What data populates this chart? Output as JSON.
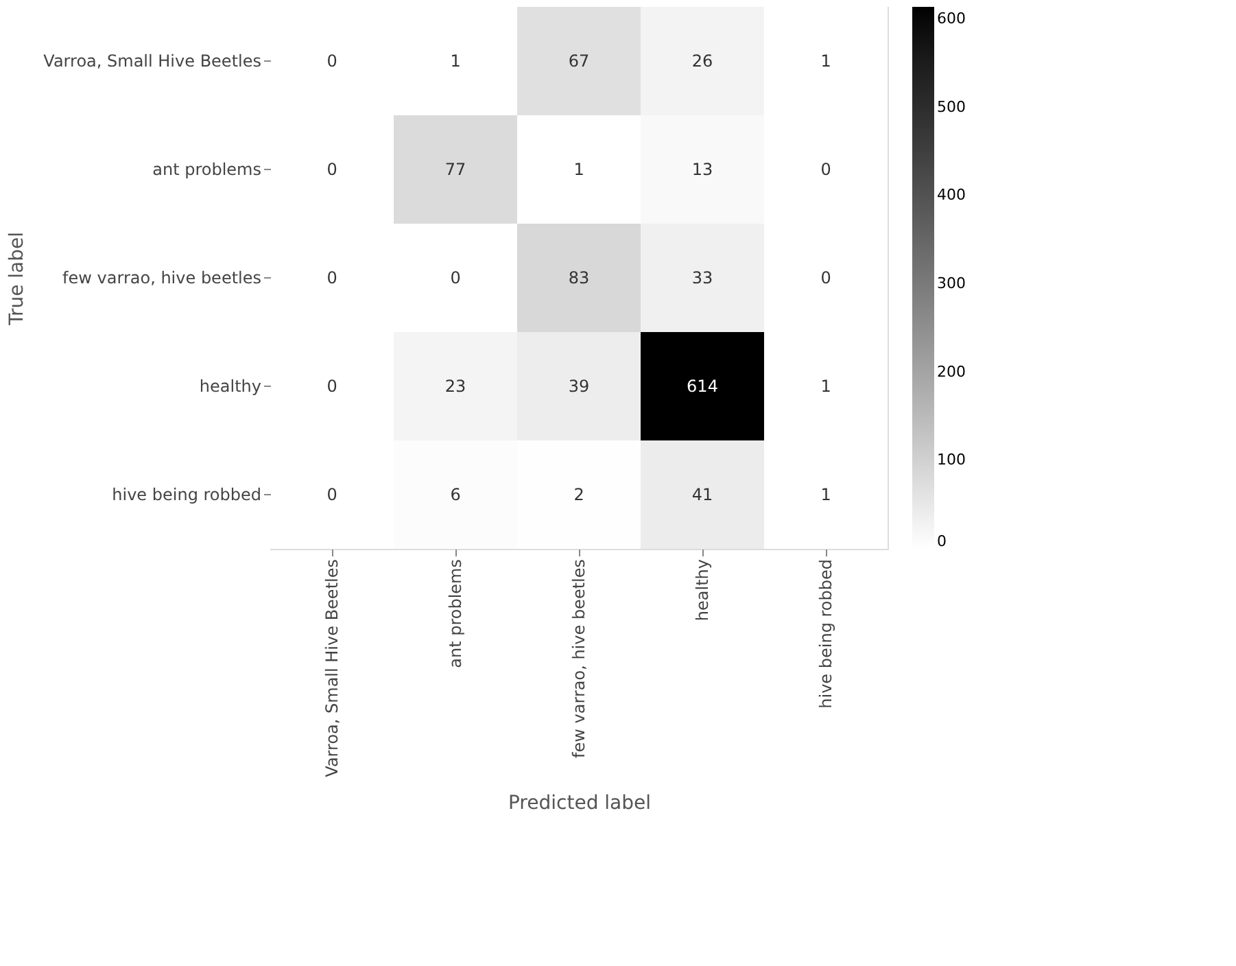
{
  "chart_data": {
    "type": "heatmap",
    "xlabel": "Predicted label",
    "ylabel": "True label",
    "categories": [
      "Varroa, Small Hive Beetles",
      "ant problems",
      "few varrao, hive beetles",
      "healthy",
      "hive being robbed"
    ],
    "y_categories": [
      "Varroa, Small Hive Beetles",
      "ant problems",
      "few varrao, hive beetles",
      "healthy",
      "hive being robbed"
    ],
    "cells": [
      [
        0,
        1,
        67,
        26,
        1
      ],
      [
        0,
        77,
        1,
        13,
        0
      ],
      [
        0,
        0,
        83,
        33,
        0
      ],
      [
        0,
        23,
        39,
        614,
        1
      ],
      [
        0,
        6,
        2,
        41,
        1
      ]
    ],
    "clim": [
      0,
      614
    ],
    "cticks": [
      0,
      100,
      200,
      300,
      400,
      500,
      600
    ],
    "data_labels": true
  }
}
